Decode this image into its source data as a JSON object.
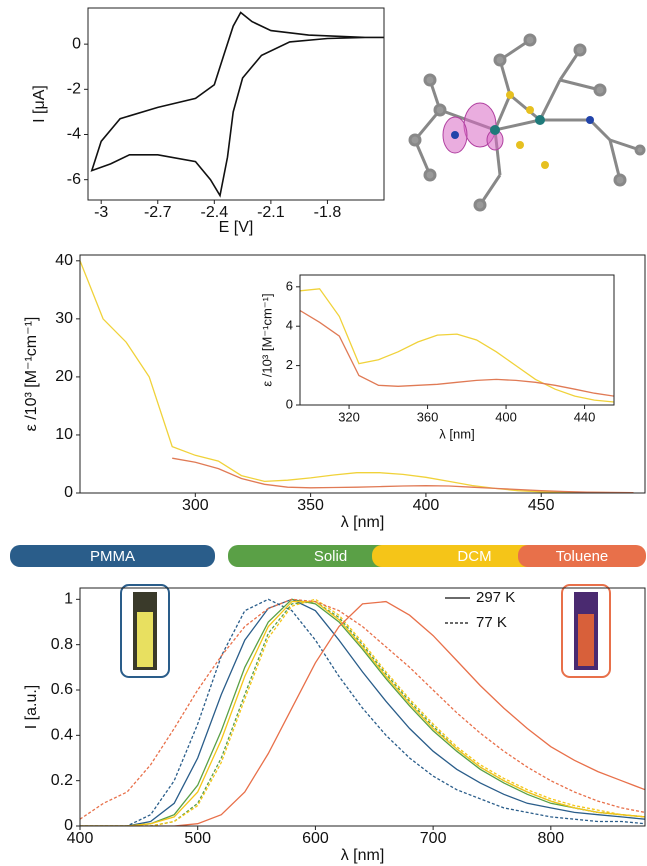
{
  "chart_data": [
    {
      "type": "line",
      "xlabel": "E [V]",
      "ylabel": "I [μA]",
      "xlim": [
        -3.07,
        -1.5
      ],
      "ylim": [
        -6.9,
        1.6
      ],
      "xticks": [
        -3,
        -2.7,
        -2.4,
        -2.1,
        -1.8
      ],
      "yticks": [
        0,
        -2,
        -4,
        -6
      ],
      "x": [
        -1.5,
        -1.6,
        -1.8,
        -2.0,
        -2.15,
        -2.25,
        -2.3,
        -2.33,
        -2.37,
        -2.42,
        -2.5,
        -2.7,
        -2.85,
        -2.95,
        -3.05,
        -3.0,
        -2.9,
        -2.7,
        -2.5,
        -2.4,
        -2.35,
        -2.3,
        -2.26,
        -2.2,
        -2.1,
        -1.9,
        -1.6
      ],
      "series": [
        {
          "color": "#111111",
          "dash": "solid",
          "values": [
            0.3,
            0.3,
            0.25,
            0.1,
            -0.5,
            -1.5,
            -3,
            -5,
            -6.7,
            -6,
            -5.2,
            -4.9,
            -4.9,
            -5.3,
            -5.6,
            -4.3,
            -3.3,
            -2.8,
            -2.4,
            -1.8,
            -0.5,
            0.8,
            1.4,
            1.0,
            0.6,
            0.4,
            0.3
          ]
        }
      ]
    },
    {
      "type": "line",
      "xlabel": "λ [nm]",
      "ylabel": "ε /10³ [M⁻¹cm⁻¹]",
      "xlim": [
        250,
        495
      ],
      "ylim": [
        0,
        41
      ],
      "xticks": [
        300,
        350,
        400,
        450
      ],
      "yticks": [
        0,
        10,
        20,
        30,
        40
      ],
      "x": [
        250,
        260,
        270,
        280,
        290,
        300,
        310,
        320,
        330,
        340,
        350,
        360,
        370,
        380,
        390,
        400,
        410,
        420,
        430,
        440,
        450,
        460,
        470,
        480,
        490
      ],
      "series": [
        {
          "color": "#f0d23a",
          "dash": "solid",
          "values": [
            40,
            30,
            26,
            20,
            8,
            6.5,
            5.5,
            3,
            2,
            2.2,
            2.6,
            3.1,
            3.5,
            3.5,
            3.2,
            2.7,
            2,
            1.3,
            0.8,
            0.4,
            0.2,
            0.1,
            0.1,
            0.05,
            0.05
          ]
        },
        {
          "color": "#e07a55",
          "dash": "solid",
          "values": [
            null,
            null,
            null,
            null,
            6,
            5.3,
            4.2,
            2.5,
            1.5,
            1,
            0.9,
            0.95,
            1,
            1.1,
            1.2,
            1.25,
            1.2,
            1,
            0.8,
            0.6,
            0.4,
            0.25,
            0.15,
            0.1,
            0.05
          ]
        }
      ]
    },
    {
      "type": "line",
      "xlabel": "λ [nm]",
      "ylabel": "ε /10³ [M⁻¹cm⁻¹]",
      "xlim": [
        295,
        455
      ],
      "ylim": [
        0,
        6.6
      ],
      "xticks": [
        320,
        360,
        400,
        440
      ],
      "yticks": [
        0,
        2,
        4,
        6
      ],
      "x": [
        295,
        305,
        315,
        325,
        335,
        345,
        355,
        365,
        375,
        385,
        395,
        405,
        415,
        425,
        435,
        445,
        455
      ],
      "series": [
        {
          "color": "#f0d23a",
          "dash": "solid",
          "values": [
            5.8,
            5.9,
            4.5,
            2.1,
            2.3,
            2.7,
            3.2,
            3.55,
            3.6,
            3.3,
            2.7,
            2,
            1.3,
            0.8,
            0.45,
            0.25,
            0.15
          ]
        },
        {
          "color": "#e07a55",
          "dash": "solid",
          "values": [
            4.8,
            4.2,
            3.5,
            1.5,
            1,
            0.95,
            1,
            1.05,
            1.15,
            1.25,
            1.3,
            1.25,
            1.15,
            1,
            0.8,
            0.6,
            0.45
          ]
        }
      ]
    },
    {
      "type": "line",
      "xlabel": "λ [nm]",
      "ylabel": "I [a.u.]",
      "xlim": [
        400,
        880
      ],
      "ylim": [
        0,
        1.05
      ],
      "xticks": [
        400,
        500,
        600,
        700,
        800
      ],
      "yticks": [
        0,
        0.2,
        0.4,
        0.6,
        0.8,
        1
      ],
      "line_styles": [
        {
          "label": "297 K",
          "dash": "solid"
        },
        {
          "label": "77 K",
          "dash": "dashed"
        }
      ],
      "x": [
        400,
        420,
        440,
        460,
        480,
        500,
        520,
        540,
        560,
        580,
        600,
        620,
        640,
        660,
        680,
        700,
        720,
        740,
        760,
        780,
        800,
        820,
        840,
        860,
        880
      ],
      "series": [
        {
          "name": "PMMA",
          "color": "#2a5d8a",
          "dash": "solid",
          "values": [
            0,
            0,
            0,
            0.02,
            0.1,
            0.3,
            0.58,
            0.82,
            0.96,
            1.0,
            0.95,
            0.82,
            0.68,
            0.55,
            0.43,
            0.33,
            0.25,
            0.19,
            0.14,
            0.1,
            0.08,
            0.06,
            0.05,
            0.04,
            0.03
          ]
        },
        {
          "name": "PMMA",
          "color": "#2a5d8a",
          "dash": "dashed",
          "values": [
            0,
            0,
            0,
            0.05,
            0.2,
            0.45,
            0.75,
            0.95,
            1.0,
            0.95,
            0.82,
            0.66,
            0.52,
            0.4,
            0.3,
            0.22,
            0.16,
            0.12,
            0.08,
            0.06,
            0.04,
            0.03,
            0.02,
            0.02,
            0.01
          ]
        },
        {
          "name": "Solid",
          "color": "#5aa046",
          "dash": "solid",
          "values": [
            0,
            0,
            0,
            0.01,
            0.05,
            0.18,
            0.42,
            0.7,
            0.9,
            1.0,
            0.98,
            0.9,
            0.78,
            0.65,
            0.53,
            0.42,
            0.33,
            0.25,
            0.19,
            0.14,
            0.1,
            0.08,
            0.06,
            0.05,
            0.04
          ]
        },
        {
          "name": "Solid",
          "color": "#5aa046",
          "dash": "dashed",
          "values": [
            0,
            0,
            0,
            0,
            0.02,
            0.1,
            0.3,
            0.58,
            0.85,
            0.98,
            0.99,
            0.92,
            0.8,
            0.67,
            0.55,
            0.44,
            0.34,
            0.26,
            0.2,
            0.15,
            0.11,
            0.08,
            0.06,
            0.05,
            0.04
          ]
        },
        {
          "name": "DCM",
          "color": "#f5c518",
          "dash": "solid",
          "values": [
            0,
            0,
            0,
            0.01,
            0.04,
            0.15,
            0.38,
            0.66,
            0.88,
            0.99,
            0.99,
            0.91,
            0.79,
            0.66,
            0.54,
            0.43,
            0.34,
            0.26,
            0.2,
            0.15,
            0.11,
            0.08,
            0.06,
            0.05,
            0.04
          ]
        },
        {
          "name": "DCM",
          "color": "#f5c518",
          "dash": "dashed",
          "values": [
            0,
            0,
            0,
            0,
            0.02,
            0.09,
            0.28,
            0.56,
            0.83,
            0.97,
            1.0,
            0.93,
            0.81,
            0.68,
            0.56,
            0.45,
            0.35,
            0.27,
            0.21,
            0.16,
            0.12,
            0.09,
            0.07,
            0.05,
            0.04
          ]
        },
        {
          "name": "Toluene",
          "color": "#e8704a",
          "dash": "solid",
          "values": [
            0,
            0,
            0,
            0,
            0,
            0.01,
            0.05,
            0.15,
            0.32,
            0.52,
            0.72,
            0.88,
            0.98,
            0.99,
            0.93,
            0.84,
            0.73,
            0.62,
            0.52,
            0.43,
            0.35,
            0.29,
            0.24,
            0.2,
            0.16
          ]
        },
        {
          "name": "Toluene",
          "color": "#e8704a",
          "dash": "dashed",
          "values": [
            0.03,
            0.1,
            0.15,
            0.27,
            0.43,
            0.6,
            0.75,
            0.88,
            0.96,
            1.0,
            0.99,
            0.95,
            0.88,
            0.79,
            0.7,
            0.6,
            0.5,
            0.41,
            0.33,
            0.26,
            0.2,
            0.15,
            0.11,
            0.08,
            0.06
          ]
        }
      ]
    }
  ]
}
